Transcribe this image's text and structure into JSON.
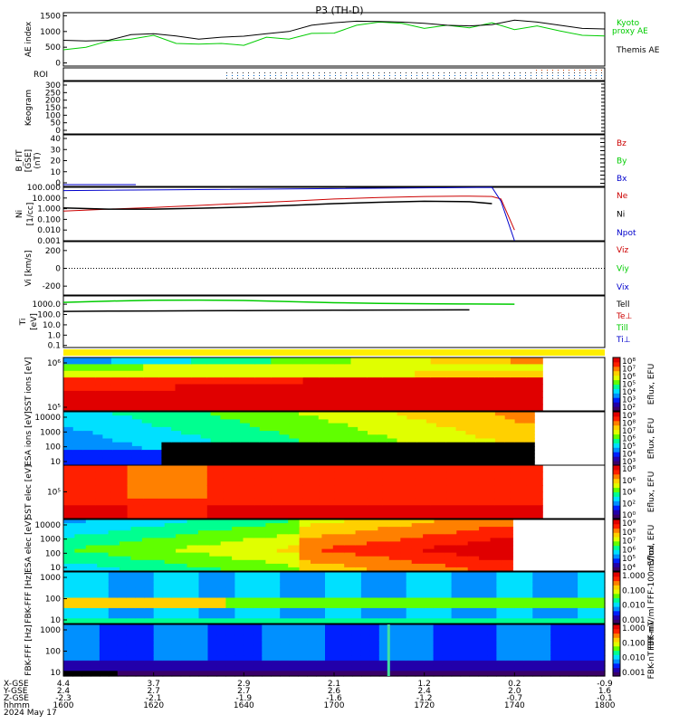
{
  "title": "P3 (TH-D)",
  "footer": {
    "date": "2024 May 17"
  },
  "chart_data": [
    {
      "type": "line",
      "panel": "ae",
      "ylabel": "AE index",
      "ylim": [
        -100,
        1600
      ],
      "yticks": [
        "1500",
        "1000",
        "500",
        "0"
      ],
      "x": [
        1600,
        1605,
        1610,
        1615,
        1620,
        1625,
        1630,
        1635,
        1640,
        1645,
        1650,
        1655,
        1700,
        1705,
        1710,
        1715,
        1720,
        1725,
        1730,
        1735,
        1740,
        1745,
        1750,
        1755,
        1800
      ],
      "series": [
        {
          "name": "Kyoto proxy AE",
          "color": "#00cc00",
          "values": [
            420,
            500,
            700,
            760,
            880,
            620,
            600,
            620,
            560,
            820,
            760,
            940,
            950,
            1200,
            1300,
            1260,
            1100,
            1200,
            1120,
            1280,
            1060,
            1180,
            1020,
            880,
            860
          ]
        },
        {
          "name": "Themis AE",
          "color": "#000000",
          "values": [
            720,
            700,
            720,
            900,
            930,
            860,
            760,
            820,
            850,
            930,
            1000,
            1200,
            1280,
            1330,
            1320,
            1300,
            1260,
            1200,
            1180,
            1220,
            1360,
            1300,
            1200,
            1100,
            1080
          ]
        }
      ]
    },
    {
      "type": "table",
      "panel": "roi",
      "ylabel": "ROI"
    },
    {
      "type": "line",
      "panel": "keogram",
      "ylabel": "Keogram",
      "yticks": [
        "300",
        "250",
        "200",
        "150",
        "100",
        "50",
        "0"
      ]
    },
    {
      "type": "line",
      "panel": "bfit",
      "ylabel": "B_FIT [GSE] (nT)",
      "yticks": [
        "40",
        "30",
        "20",
        "10",
        "0"
      ],
      "series": [
        {
          "name": "Bz",
          "color": "#cc0000"
        },
        {
          "name": "By",
          "color": "#00cc00"
        },
        {
          "name": "Bx",
          "color": "#0000cc"
        }
      ]
    },
    {
      "type": "line",
      "panel": "density",
      "ylabel": "Ni [1/cc] (e/cc)",
      "ylog": true,
      "yticks": [
        "100.000",
        "10.000",
        "1.000",
        "0.100",
        "0.010",
        "0.001"
      ],
      "x": [
        1600,
        1610,
        1620,
        1630,
        1640,
        1650,
        1700,
        1710,
        1720,
        1730,
        1735,
        1737,
        1740
      ],
      "series": [
        {
          "name": "Ne",
          "color": "#cc0000",
          "values": [
            0.6,
            0.9,
            1.3,
            2.0,
            3.2,
            5.0,
            8.0,
            11.0,
            14.0,
            15.0,
            14.0,
            8.0,
            0.01
          ]
        },
        {
          "name": "Ni",
          "color": "#000000",
          "values": [
            1.2,
            0.9,
            0.9,
            1.1,
            1.4,
            2.0,
            3.0,
            4.0,
            5.0,
            4.5,
            3.0,
            null,
            null
          ]
        },
        {
          "name": "Npot",
          "color": "#0000cc",
          "values": [
            50,
            null,
            null,
            null,
            null,
            null,
            null,
            null,
            null,
            null,
            100,
            5,
            0.001
          ]
        }
      ]
    },
    {
      "type": "line",
      "panel": "velocity",
      "ylabel": "Vi [km/s]",
      "yticks": [
        "200",
        "0",
        "-200"
      ],
      "series": [
        {
          "name": "Viz",
          "color": "#cc0000"
        },
        {
          "name": "Viy",
          "color": "#00cc00"
        },
        {
          "name": "Vix",
          "color": "#0000cc"
        }
      ]
    },
    {
      "type": "line",
      "panel": "temperature",
      "ylabel": "Ti [eV] (e/cc)",
      "ylog": true,
      "yticks": [
        "1000.0",
        "100.0",
        "10.0",
        "1.0",
        "0.1"
      ],
      "x": [
        1600,
        1610,
        1620,
        1630,
        1640,
        1650,
        1700,
        1710,
        1720,
        1730,
        1740
      ],
      "series": [
        {
          "name": "Tell",
          "color": "#000000",
          "values": [
            200,
            210,
            220,
            230,
            240,
            250,
            260,
            270,
            275,
            280,
            null
          ]
        },
        {
          "name": "Te⊥",
          "color": "#cc0000"
        },
        {
          "name": "Till",
          "color": "#00cc00",
          "values": [
            1500,
            2000,
            2400,
            2500,
            2300,
            1800,
            1400,
            1200,
            1100,
            1050,
            1000
          ]
        },
        {
          "name": "Ti⊥",
          "color": "#0000cc"
        }
      ]
    },
    {
      "type": "heatmap",
      "panel": "sst-ion",
      "ylabel": "SST ions [eV]",
      "ylog": true,
      "yticks": [
        "10⁶",
        "10⁵"
      ],
      "colorbar": {
        "label": "Eflux, EFU",
        "ticks": [
          "10⁸",
          "10⁷",
          "10⁶",
          "10⁵",
          "10⁴",
          "10³",
          "10²"
        ]
      }
    },
    {
      "type": "heatmap",
      "panel": "esa-ion",
      "ylabel": "ESA ions [eV]",
      "ylog": true,
      "yticks": [
        "10000",
        "1000",
        "100",
        "10"
      ],
      "colorbar": {
        "label": "Eflux, EFU",
        "ticks": [
          "10⁹",
          "10⁸",
          "10⁷",
          "10⁶",
          "10⁵",
          "10⁴",
          "10³"
        ]
      }
    },
    {
      "type": "heatmap",
      "panel": "sst-elec",
      "ylabel": "SST elec [eV]",
      "ylog": true,
      "yticks": [
        "10⁵"
      ],
      "colorbar": {
        "label": "Eflux, EFU",
        "ticks": [
          "10⁸",
          "10⁶",
          "10⁴",
          "10²",
          "10⁰"
        ]
      }
    },
    {
      "type": "heatmap",
      "panel": "esa-elec",
      "ylabel": "ESA elec [eV]",
      "ylog": true,
      "yticks": [
        "10000",
        "1000",
        "100",
        "10"
      ],
      "colorbar": {
        "label": "Eflux, EFU",
        "ticks": [
          "10⁹",
          "10⁸",
          "10⁷",
          "10⁶",
          "10⁵",
          "10⁴"
        ]
      }
    },
    {
      "type": "heatmap",
      "panel": "fbk-fff",
      "ylabel": "FBK-FFF [Hz]",
      "ylog": true,
      "yticks": [
        "1000",
        "100",
        "10"
      ],
      "colorbar": {
        "label": "FBK-mV/ml  FFF-100mV/ml",
        "ticks": [
          "1.000",
          "0.100",
          "0.010",
          "0.001"
        ]
      }
    },
    {
      "type": "heatmap",
      "panel": "fbk-ffb",
      "ylabel": "FBK-FFF [Hz]",
      "ylog": true,
      "yticks": [
        "1000",
        "100",
        "10"
      ],
      "colorbar": {
        "label": "FBK-nT  FFF-nT",
        "ticks": [
          "1.000",
          "0.100",
          "0.010",
          "0.001"
        ]
      }
    }
  ],
  "time_axis": {
    "row_labels": [
      "X-GSE",
      "Y-GSE",
      "Z-GSE",
      "hhmm"
    ],
    "ticks": [
      {
        "xge": "4.4",
        "yge": "2.4",
        "zge": "-2.3",
        "hhmm": "1600"
      },
      {
        "xge": "3.7",
        "yge": "2.7",
        "zge": "-2.1",
        "hhmm": "1620"
      },
      {
        "xge": "2.9",
        "yge": "2.7",
        "zge": "-1.9",
        "hhmm": "1640"
      },
      {
        "xge": "2.1",
        "yge": "2.6",
        "zge": "-1.6",
        "hhmm": "1700"
      },
      {
        "xge": "1.2",
        "yge": "2.4",
        "zge": "-1.2",
        "hhmm": "1720"
      },
      {
        "xge": "0.2",
        "yge": "2.0",
        "zge": "-0.7",
        "hhmm": "1740"
      },
      {
        "xge": "-0.9",
        "yge": "1.6",
        "zge": "-0.1",
        "hhmm": "1800"
      }
    ]
  }
}
